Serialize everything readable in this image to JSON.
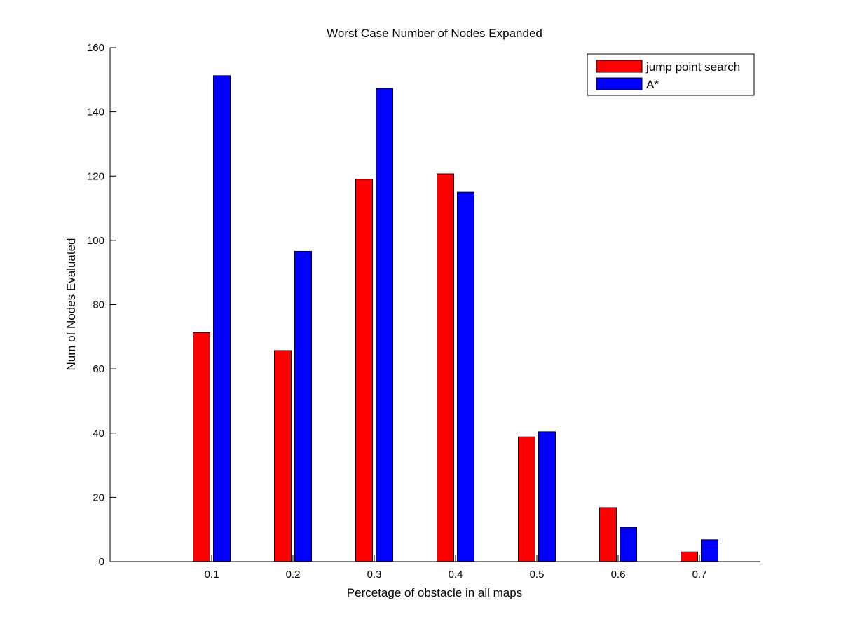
{
  "chart_data": {
    "type": "bar",
    "title": "Worst Case Number of Nodes Expanded",
    "xlabel": "Percetage of obstacle in all maps",
    "ylabel": "Num of Nodes Evaluated",
    "categories": [
      "0.1",
      "0.2",
      "0.3",
      "0.4",
      "0.5",
      "0.6",
      "0.7"
    ],
    "x_values": [
      0.1,
      0.2,
      0.3,
      0.4,
      0.5,
      0.6,
      0.7
    ],
    "xlim": [
      -0.025,
      0.775
    ],
    "ylim": [
      0,
      160
    ],
    "yticks": [
      "0",
      "20",
      "40",
      "60",
      "80",
      "100",
      "120",
      "140",
      "160"
    ],
    "ytick_values": [
      0,
      20,
      40,
      60,
      80,
      100,
      120,
      140,
      160
    ],
    "grid": false,
    "legend_position": "top-right",
    "series": [
      {
        "name": "jump point search",
        "color": "#ff0000",
        "values": [
          71.3,
          65.7,
          119,
          120.7,
          38.8,
          16.8,
          3.0
        ]
      },
      {
        "name": "A*",
        "color": "#0000ff",
        "values": [
          151.3,
          96.6,
          147.3,
          115,
          40.4,
          10.6,
          6.8
        ]
      }
    ]
  }
}
